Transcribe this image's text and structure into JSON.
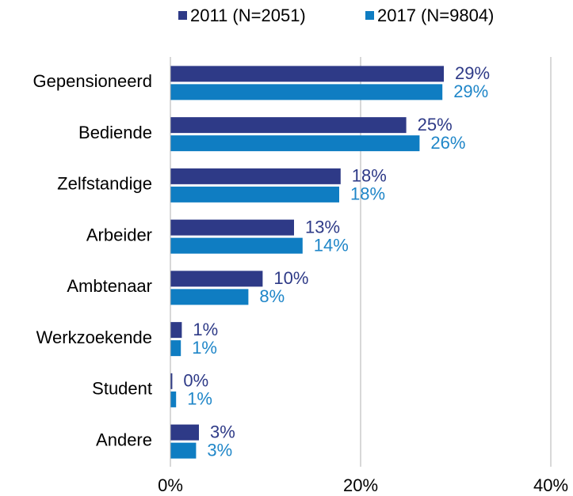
{
  "chart_data": {
    "type": "hbar",
    "categories": [
      "Gepensioneerd",
      "Bediende",
      "Zelfstandige",
      "Arbeider",
      "Ambtenaar",
      "Werkzoekende",
      "Student",
      "Andere"
    ],
    "series": [
      {
        "name": "2011 (N=2051)",
        "color": "#2e3a87",
        "values": [
          28.75,
          24.8,
          17.9,
          13.0,
          9.7,
          1.2,
          0.2,
          3.0
        ],
        "value_labels": [
          "29%",
          "25%",
          "18%",
          "13%",
          "10%",
          "1%",
          "0%",
          "3%"
        ]
      },
      {
        "name": "2017 (N=9804)",
        "color": "#0f7dc2",
        "values": [
          28.6,
          26.2,
          17.75,
          13.9,
          8.2,
          1.1,
          0.6,
          2.7
        ],
        "value_labels": [
          "29%",
          "26%",
          "18%",
          "14%",
          "8%",
          "1%",
          "1%",
          "3%"
        ]
      }
    ],
    "xlim": [
      0,
      40
    ],
    "xticks": [
      {
        "value": 0,
        "label": "0%"
      },
      {
        "value": 20,
        "label": "20%"
      },
      {
        "value": 40,
        "label": "40%"
      }
    ],
    "grid": true
  }
}
